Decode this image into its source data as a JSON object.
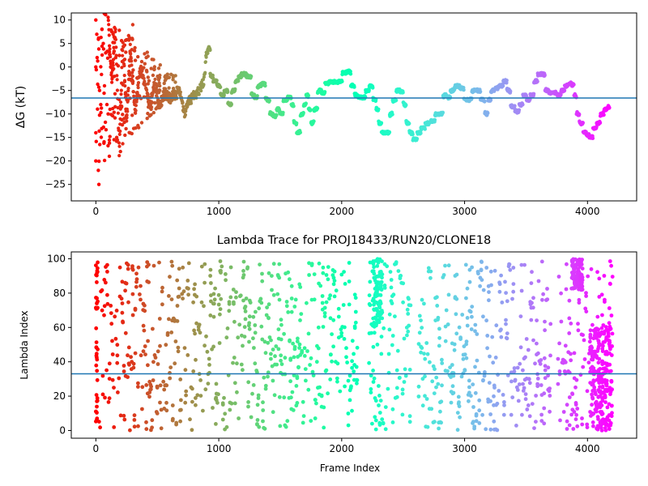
{
  "chart_data": [
    {
      "type": "scatter",
      "title": "",
      "xlabel": "",
      "ylabel": "ΔG (kT)",
      "xlim": [
        -200,
        4400
      ],
      "ylim": [
        -28.5,
        11.5
      ],
      "xticks": [
        0,
        1000,
        2000,
        3000,
        4000
      ],
      "yticks": [
        -25,
        -20,
        -15,
        -10,
        -5,
        0,
        5,
        10
      ],
      "hline": {
        "value": -6.6,
        "color": "#1f77b4"
      },
      "colormap": "rainbow (red at frame 0 → purple at frame 4200)",
      "trace": [
        [
          100,
          10
        ],
        [
          130,
          -3
        ],
        [
          160,
          8
        ],
        [
          190,
          -18
        ],
        [
          220,
          6
        ],
        [
          250,
          -12
        ],
        [
          280,
          4
        ],
        [
          320,
          -10
        ],
        [
          360,
          0
        ],
        [
          400,
          -4
        ],
        [
          440,
          -8
        ],
        [
          480,
          -3
        ],
        [
          520,
          -9
        ],
        [
          560,
          -5
        ],
        [
          600,
          -7
        ],
        [
          640,
          -6
        ],
        [
          680,
          -5
        ],
        [
          720,
          -10
        ],
        [
          760,
          -7
        ],
        [
          800,
          -6
        ],
        [
          840,
          -5
        ],
        [
          880,
          -3
        ],
        [
          900,
          3
        ],
        [
          920,
          4
        ],
        [
          940,
          -2
        ],
        [
          970,
          -3
        ],
        [
          1000,
          -4
        ],
        [
          1030,
          -6
        ],
        [
          1060,
          -5
        ],
        [
          1090,
          -8
        ],
        [
          1120,
          -5
        ],
        [
          1150,
          -3
        ],
        [
          1170,
          -2
        ],
        [
          1200,
          -1.5
        ],
        [
          1250,
          -2
        ],
        [
          1280,
          -6
        ],
        [
          1300,
          -6.5
        ],
        [
          1330,
          -4
        ],
        [
          1360,
          -3.5
        ],
        [
          1400,
          -7
        ],
        [
          1430,
          -10
        ],
        [
          1460,
          -10.5
        ],
        [
          1480,
          -9
        ],
        [
          1510,
          -10
        ],
        [
          1540,
          -7
        ],
        [
          1580,
          -6.5
        ],
        [
          1600,
          -8
        ],
        [
          1620,
          -12
        ],
        [
          1650,
          -14
        ],
        [
          1680,
          -10
        ],
        [
          1700,
          -8
        ],
        [
          1720,
          -6
        ],
        [
          1740,
          -9
        ],
        [
          1760,
          -12
        ],
        [
          1790,
          -9
        ],
        [
          1820,
          -5
        ],
        [
          1850,
          -5.5
        ],
        [
          1880,
          -3.5
        ],
        [
          1920,
          -3.2
        ],
        [
          1960,
          -3.2
        ],
        [
          1990,
          -3
        ],
        [
          2020,
          -1.2
        ],
        [
          2060,
          -1
        ],
        [
          2090,
          -4
        ],
        [
          2120,
          -6
        ],
        [
          2150,
          -6.5
        ],
        [
          2180,
          -6.5
        ],
        [
          2210,
          -5
        ],
        [
          2240,
          -4
        ],
        [
          2270,
          -7
        ],
        [
          2290,
          -9
        ],
        [
          2310,
          -12
        ],
        [
          2340,
          -14
        ],
        [
          2380,
          -14
        ],
        [
          2400,
          -10
        ],
        [
          2430,
          -7
        ],
        [
          2460,
          -5
        ],
        [
          2490,
          -5.2
        ],
        [
          2510,
          -8
        ],
        [
          2540,
          -12
        ],
        [
          2560,
          -14
        ],
        [
          2600,
          -15.5
        ],
        [
          2630,
          -14
        ],
        [
          2660,
          -13
        ],
        [
          2700,
          -12
        ],
        [
          2740,
          -11.5
        ],
        [
          2780,
          -10
        ],
        [
          2810,
          -10
        ],
        [
          2840,
          -6
        ],
        [
          2870,
          -6.5
        ],
        [
          2900,
          -5
        ],
        [
          2940,
          -4
        ],
        [
          2980,
          -4.5
        ],
        [
          3010,
          -7
        ],
        [
          3040,
          -7
        ],
        [
          3080,
          -5
        ],
        [
          3110,
          -5
        ],
        [
          3150,
          -7
        ],
        [
          3180,
          -10
        ],
        [
          3200,
          -7
        ],
        [
          3230,
          -5
        ],
        [
          3260,
          -4.5
        ],
        [
          3300,
          -4
        ],
        [
          3330,
          -3
        ],
        [
          3360,
          -5
        ],
        [
          3390,
          -8.5
        ],
        [
          3430,
          -9.5
        ],
        [
          3460,
          -8
        ],
        [
          3490,
          -6
        ],
        [
          3520,
          -7
        ],
        [
          3550,
          -6
        ],
        [
          3580,
          -3
        ],
        [
          3610,
          -1.5
        ],
        [
          3640,
          -1.5
        ],
        [
          3670,
          -5
        ],
        [
          3700,
          -5.5
        ],
        [
          3740,
          -5.5
        ],
        [
          3770,
          -6
        ],
        [
          3800,
          -5
        ],
        [
          3830,
          -4
        ],
        [
          3860,
          -3.5
        ],
        [
          3880,
          -3.8
        ],
        [
          3900,
          -6
        ],
        [
          3920,
          -10
        ],
        [
          3950,
          -12
        ],
        [
          3980,
          -14
        ],
        [
          4000,
          -14.5
        ],
        [
          4030,
          -15
        ],
        [
          4060,
          -13
        ],
        [
          4090,
          -12
        ],
        [
          4120,
          -10
        ],
        [
          4150,
          -9
        ],
        [
          4180,
          -8.5
        ]
      ]
    },
    {
      "type": "scatter",
      "title": "Lambda Trace for PROJ18433/RUN20/CLONE18",
      "xlabel": "Frame Index",
      "ylabel": "Lambda Index",
      "xlim": [
        -200,
        4400
      ],
      "ylim": [
        -4.5,
        104
      ],
      "xticks": [
        0,
        1000,
        2000,
        3000,
        4000
      ],
      "yticks": [
        0,
        20,
        40,
        60,
        80,
        100
      ],
      "hline": {
        "value": 33,
        "color": "#1f77b4"
      },
      "colormap": "rainbow (red at frame 0 → purple at frame 4200)",
      "dense_bands": [
        {
          "x_start": 2250,
          "x_end": 2330,
          "y_low": 60,
          "y_high": 100
        },
        {
          "x_start": 3870,
          "x_end": 3960,
          "y_low": 82,
          "y_high": 100
        },
        {
          "x_start": 4020,
          "x_end": 4200,
          "y_low": 0,
          "y_high": 62
        }
      ],
      "gaps": [
        {
          "x_start": 2130,
          "x_end": 2220
        },
        {
          "x_start": 2560,
          "x_end": 2620
        },
        {
          "x_start": 3700,
          "x_end": 3760
        }
      ]
    }
  ]
}
